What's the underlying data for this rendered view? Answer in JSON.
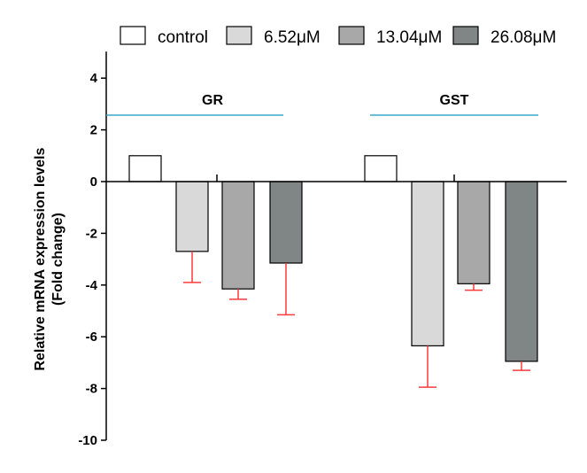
{
  "chart_data": {
    "type": "bar",
    "title": "",
    "xlabel": "",
    "ylabel": "Relative mRNA expression levels",
    "ylabel2": "(Fold change)",
    "ylim": [
      -10,
      4
    ],
    "yticks": [
      4,
      2,
      0,
      -2,
      -4,
      -6,
      -8,
      -10
    ],
    "grid": false,
    "legend_position": "top",
    "groups": [
      "GR",
      "GST"
    ],
    "series": [
      {
        "name": "control",
        "color": "#ffffff",
        "values": [
          1.0,
          1.0
        ],
        "errors": [
          0,
          0
        ]
      },
      {
        "name": "6.52μM",
        "color": "#d9d9d9",
        "values": [
          -2.7,
          -6.35
        ],
        "errors": [
          1.2,
          1.6
        ]
      },
      {
        "name": "13.04μM",
        "color": "#a8a8a8",
        "values": [
          -4.15,
          -3.95
        ],
        "errors": [
          0.4,
          0.25
        ]
      },
      {
        "name": "26.08μM",
        "color": "#808585",
        "values": [
          -3.15,
          -6.95
        ],
        "errors": [
          2.0,
          0.35
        ]
      }
    ],
    "error_bar_color": "#ff3b3b",
    "group_line_color": "#3aa6c7"
  }
}
